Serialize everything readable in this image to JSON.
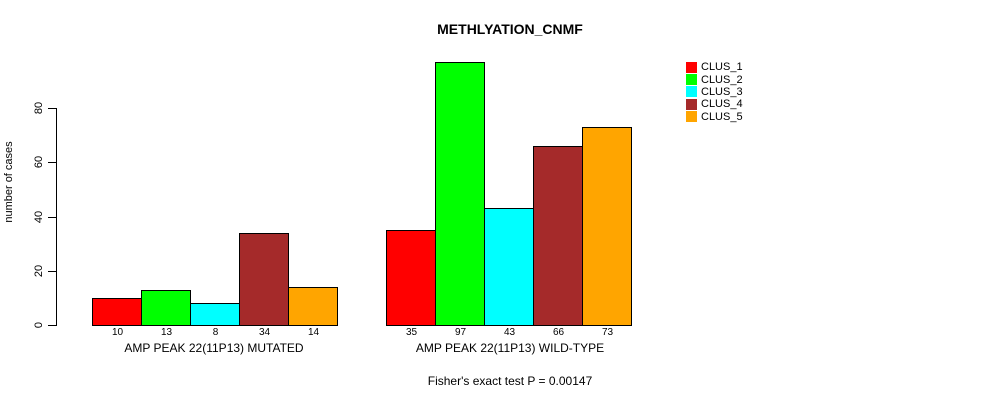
{
  "chart_data": {
    "type": "bar",
    "title": "METHLYATION_CNMF",
    "ylabel": "number of cases",
    "footer": "Fisher's exact test P = 0.00147",
    "yticks": [
      0,
      20,
      40,
      60,
      80
    ],
    "ylim": [
      0,
      100
    ],
    "grid": false,
    "legend_position": "right",
    "categories": [
      "AMP PEAK 22(11P13) MUTATED",
      "AMP PEAK 22(11P13) WILD-TYPE"
    ],
    "series": [
      {
        "name": "CLUS_1",
        "color": "#ff0000",
        "values": [
          10,
          35
        ]
      },
      {
        "name": "CLUS_2",
        "color": "#00ff00",
        "values": [
          13,
          97
        ]
      },
      {
        "name": "CLUS_3",
        "color": "#00ffff",
        "values": [
          8,
          43
        ]
      },
      {
        "name": "CLUS_4",
        "color": "#a52a2a",
        "values": [
          34,
          66
        ]
      },
      {
        "name": "CLUS_5",
        "color": "#ffa500",
        "values": [
          14,
          73
        ]
      }
    ],
    "bar_value_labels_shown": true
  }
}
